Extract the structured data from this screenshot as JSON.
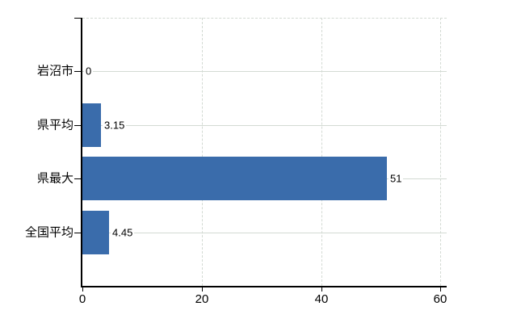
{
  "chart_data": {
    "type": "bar",
    "orientation": "horizontal",
    "title": "",
    "xlabel": "",
    "ylabel": "",
    "categories": [
      "岩沼市",
      "県平均",
      "県最大",
      "全国平均"
    ],
    "values": [
      0,
      3.15,
      51,
      4.45
    ],
    "value_labels": [
      "0",
      "3.15",
      "51",
      "4.45"
    ],
    "x_tick_labels": [
      "0",
      "20",
      "40",
      "60"
    ],
    "x_tick_values": [
      0,
      20,
      40,
      60
    ],
    "xlim": [
      0,
      61
    ],
    "grid": "on",
    "legend": "none",
    "colors": {
      "bar": "#3a6cab",
      "axis": "#000000",
      "gridline": "#d3dad3",
      "text": "#000000",
      "background": "#ffffff"
    }
  }
}
